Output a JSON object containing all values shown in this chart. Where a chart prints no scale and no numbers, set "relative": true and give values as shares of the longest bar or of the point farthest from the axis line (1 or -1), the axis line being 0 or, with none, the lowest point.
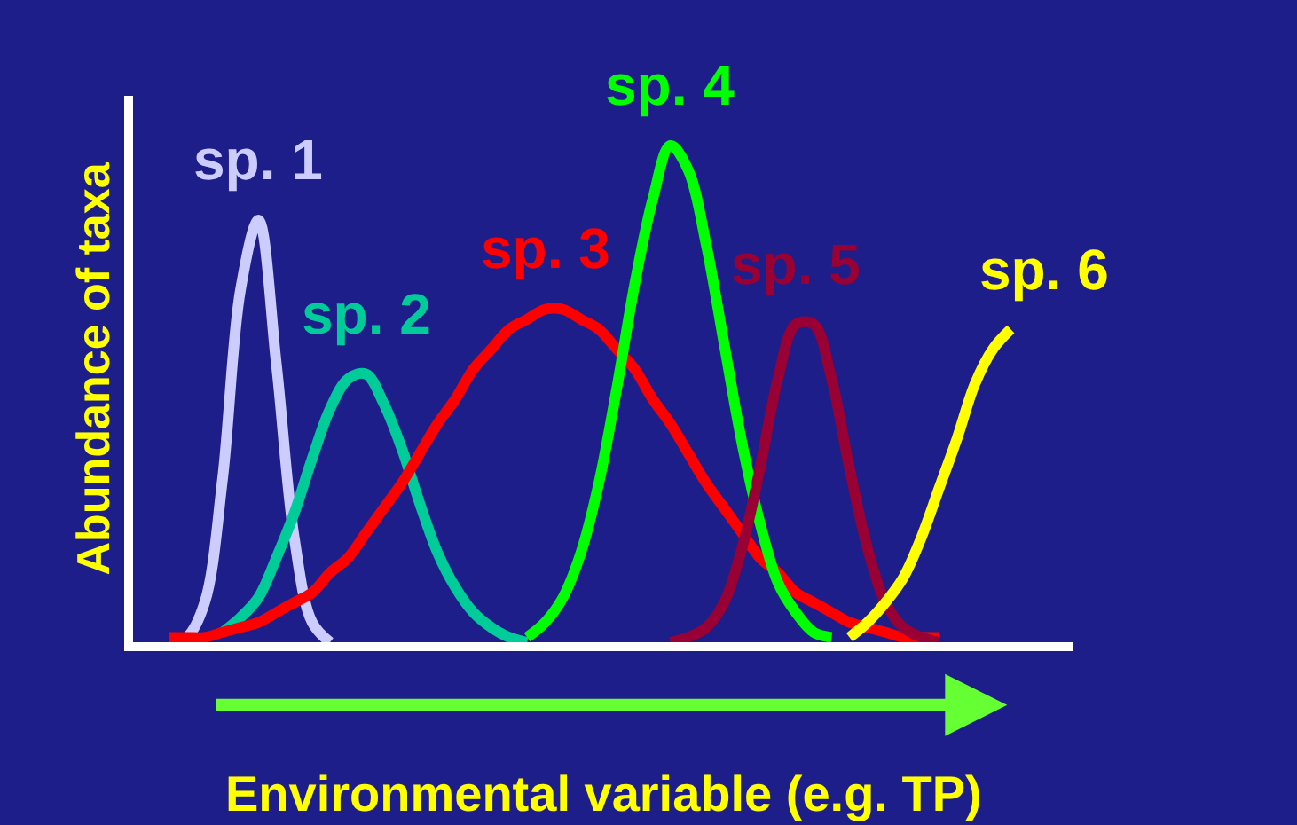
{
  "chart_data": {
    "type": "line",
    "relative": true,
    "xlabel": "Environmental variable (e.g. TP)",
    "ylabel": "Abundance of taxa",
    "grid": false,
    "legend": false,
    "marker": "none",
    "line_style": "solid",
    "categories": [
      null,
      null,
      null,
      null,
      null,
      null,
      null,
      null,
      null,
      null,
      null,
      null,
      null,
      null,
      null,
      null,
      null,
      null,
      null,
      null,
      null,
      null,
      null,
      null,
      null,
      null,
      null,
      null,
      null,
      null,
      null,
      null,
      null,
      null,
      null,
      null,
      null,
      null,
      null,
      null,
      null,
      null,
      null,
      null,
      null,
      null,
      null,
      null
    ],
    "series": [
      {
        "name": "sp. 1",
        "color": "#ccccff",
        "values": [
          0.0,
          0.01,
          0.08,
          0.33,
          0.71,
          0.85,
          0.56,
          0.21,
          0.04,
          0.0,
          null,
          null,
          null,
          null,
          null,
          null,
          null,
          null,
          null,
          null,
          null,
          null,
          null,
          null,
          null,
          null,
          null,
          null,
          null,
          null,
          null,
          null,
          null,
          null,
          null,
          null,
          null,
          null,
          null,
          null,
          null,
          null,
          null,
          null,
          null,
          null,
          null,
          null
        ]
      },
      {
        "name": "sp. 2",
        "color": "#00cc99",
        "values": [
          null,
          null,
          null,
          0.02,
          0.05,
          0.09,
          0.17,
          0.26,
          0.37,
          0.47,
          0.53,
          0.54,
          0.48,
          0.39,
          0.28,
          0.18,
          0.11,
          0.06,
          0.03,
          0.01,
          0.0,
          null,
          null,
          null,
          null,
          null,
          null,
          null,
          null,
          null,
          null,
          null,
          null,
          null,
          null,
          null,
          null,
          null,
          null,
          null,
          null,
          null,
          null,
          null,
          null,
          null,
          null,
          null
        ]
      },
      {
        "name": "sp. 3",
        "color": "#ff0000",
        "values": [
          0.01,
          0.01,
          0.01,
          0.02,
          0.03,
          0.04,
          0.06,
          0.08,
          0.1,
          0.14,
          0.17,
          0.22,
          0.27,
          0.32,
          0.38,
          0.44,
          0.49,
          0.55,
          0.59,
          0.63,
          0.65,
          0.67,
          0.67,
          0.65,
          0.63,
          0.59,
          0.55,
          0.49,
          0.44,
          0.38,
          0.32,
          0.27,
          0.22,
          0.17,
          0.14,
          0.1,
          0.08,
          0.06,
          0.04,
          0.03,
          0.02,
          0.01,
          0.01,
          0.01,
          null,
          null,
          null,
          null
        ]
      },
      {
        "name": "sp. 4",
        "color": "#00ff00",
        "values": [
          null,
          null,
          null,
          null,
          null,
          null,
          null,
          null,
          null,
          null,
          null,
          null,
          null,
          null,
          null,
          null,
          null,
          null,
          null,
          null,
          0.01,
          0.04,
          0.09,
          0.18,
          0.32,
          0.51,
          0.72,
          0.89,
          1.0,
          0.95,
          0.8,
          0.6,
          0.4,
          0.24,
          0.12,
          0.06,
          0.02,
          0.01,
          null,
          null,
          null,
          null,
          null,
          null,
          null,
          null,
          null,
          null
        ]
      },
      {
        "name": "sp. 5",
        "color": "#990033",
        "values": [
          null,
          null,
          null,
          null,
          null,
          null,
          null,
          null,
          null,
          null,
          null,
          null,
          null,
          null,
          null,
          null,
          null,
          null,
          null,
          null,
          null,
          null,
          null,
          null,
          null,
          null,
          null,
          null,
          0.0,
          0.01,
          0.03,
          0.08,
          0.19,
          0.35,
          0.53,
          0.64,
          0.64,
          0.53,
          0.35,
          0.19,
          0.08,
          0.03,
          0.01,
          0.0,
          null,
          null,
          null,
          null
        ]
      },
      {
        "name": "sp. 6",
        "color": "#ffff00",
        "values": [
          null,
          null,
          null,
          null,
          null,
          null,
          null,
          null,
          null,
          null,
          null,
          null,
          null,
          null,
          null,
          null,
          null,
          null,
          null,
          null,
          null,
          null,
          null,
          null,
          null,
          null,
          null,
          null,
          null,
          null,
          null,
          null,
          null,
          null,
          null,
          null,
          null,
          null,
          0.01,
          0.04,
          0.08,
          0.13,
          0.21,
          0.31,
          0.41,
          0.52,
          0.59,
          0.63
        ]
      }
    ]
  }
}
